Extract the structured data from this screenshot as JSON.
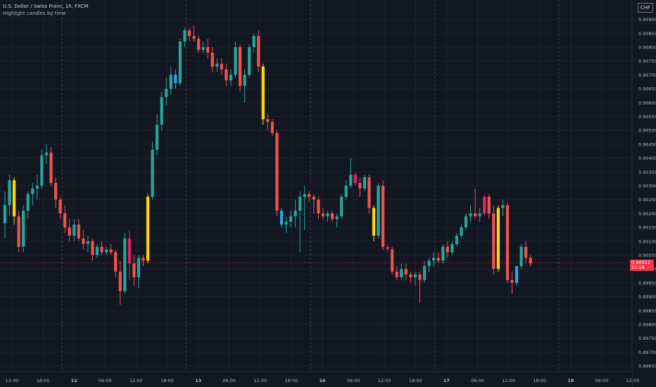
{
  "header": {
    "symbol_line": "U.S. Dollar / Swiss Franc, 1h, FXCM",
    "indicator": "Highlight candles by time"
  },
  "currency_button": "CHF",
  "last_price": {
    "price": "0.90022",
    "countdown": "51:16"
  },
  "colors": {
    "background": "#131722",
    "grid": "#1e222d",
    "up": "#26a69a",
    "down": "#ef5350",
    "yellow": "#ffd600",
    "blue": "#2fa4e7",
    "pink": "#e91e63",
    "text": "#b2b5be"
  },
  "chart_data": {
    "type": "candlestick",
    "y_axis": {
      "range": [
        0.8963,
        0.9097
      ],
      "ticks": [
        "0.90900",
        "0.90850",
        "0.90800",
        "0.90750",
        "0.90700",
        "0.90650",
        "0.90600",
        "0.90550",
        "0.90500",
        "0.90450",
        "0.90400",
        "0.90350",
        "0.90300",
        "0.90250",
        "0.90200",
        "0.90150",
        "0.90100",
        "0.90050",
        "0.90000",
        "0.89950",
        "0.89900",
        "0.89850",
        "0.89800",
        "0.89750",
        "0.89700",
        "0.89650"
      ]
    },
    "x_axis": {
      "ticks": [
        "12:00",
        "18:00",
        "12",
        "06:00",
        "12:00",
        "18:00",
        "13",
        "06:00",
        "12:00",
        "18:00",
        "16",
        "06:00",
        "12:00",
        "18:00",
        "17",
        "06:00",
        "12:00",
        "18:00",
        "18",
        "06:00",
        "12:00"
      ]
    },
    "last_price": 0.90022,
    "candles": [
      {
        "o": 0.90165,
        "h": 0.9028,
        "l": 0.9011,
        "c": 0.9023
      },
      {
        "o": 0.9023,
        "h": 0.9034,
        "l": 0.9019,
        "c": 0.9032
      },
      {
        "o": 0.9032,
        "h": 0.9033,
        "l": 0.9016,
        "c": 0.9019,
        "hl": "yellow"
      },
      {
        "o": 0.9019,
        "h": 0.9021,
        "l": 0.9006,
        "c": 0.9008
      },
      {
        "o": 0.9008,
        "h": 0.9023,
        "l": 0.9006,
        "c": 0.9021
      },
      {
        "o": 0.9021,
        "h": 0.9028,
        "l": 0.9018,
        "c": 0.9027
      },
      {
        "o": 0.9027,
        "h": 0.9031,
        "l": 0.9023,
        "c": 0.9029
      },
      {
        "o": 0.9029,
        "h": 0.9034,
        "l": 0.9025,
        "c": 0.903
      },
      {
        "o": 0.903,
        "h": 0.9043,
        "l": 0.9029,
        "c": 0.9041
      },
      {
        "o": 0.9041,
        "h": 0.9045,
        "l": 0.9038,
        "c": 0.9042
      },
      {
        "o": 0.9042,
        "h": 0.9044,
        "l": 0.903,
        "c": 0.9031
      },
      {
        "o": 0.9031,
        "h": 0.9033,
        "l": 0.9022,
        "c": 0.9025
      },
      {
        "o": 0.9025,
        "h": 0.9026,
        "l": 0.9018,
        "c": 0.902
      },
      {
        "o": 0.902,
        "h": 0.9023,
        "l": 0.9013,
        "c": 0.9015
      },
      {
        "o": 0.9015,
        "h": 0.9018,
        "l": 0.901,
        "c": 0.9012
      },
      {
        "o": 0.9012,
        "h": 0.9018,
        "l": 0.901,
        "c": 0.9016
      },
      {
        "o": 0.9016,
        "h": 0.9018,
        "l": 0.901,
        "c": 0.9011
      },
      {
        "o": 0.9011,
        "h": 0.9014,
        "l": 0.9007,
        "c": 0.9009
      },
      {
        "o": 0.9009,
        "h": 0.9012,
        "l": 0.9006,
        "c": 0.901
      },
      {
        "o": 0.901,
        "h": 0.9011,
        "l": 0.9003,
        "c": 0.9005
      },
      {
        "o": 0.9005,
        "h": 0.9009,
        "l": 0.9004,
        "c": 0.9008
      },
      {
        "o": 0.9008,
        "h": 0.901,
        "l": 0.9005,
        "c": 0.9006
      },
      {
        "o": 0.9006,
        "h": 0.9008,
        "l": 0.9005,
        "c": 0.9007
      },
      {
        "o": 0.9007,
        "h": 0.9009,
        "l": 0.9005,
        "c": 0.9006
      },
      {
        "o": 0.9006,
        "h": 0.9007,
        "l": 0.8997,
        "c": 0.8999
      },
      {
        "o": 0.8999,
        "h": 0.9003,
        "l": 0.8987,
        "c": 0.8992
      },
      {
        "o": 0.8992,
        "h": 0.9013,
        "l": 0.8991,
        "c": 0.9011
      },
      {
        "o": 0.9011,
        "h": 0.9014,
        "l": 0.8996,
        "c": 0.9002,
        "hl": "pink"
      },
      {
        "o": 0.9002,
        "h": 0.9005,
        "l": 0.8994,
        "c": 0.8997
      },
      {
        "o": 0.8997,
        "h": 0.9005,
        "l": 0.8993,
        "c": 0.9004
      },
      {
        "o": 0.9004,
        "h": 0.9005,
        "l": 0.9001,
        "c": 0.9003
      },
      {
        "o": 0.9003,
        "h": 0.9027,
        "l": 0.9002,
        "c": 0.9026,
        "hl": "yellow"
      },
      {
        "o": 0.9026,
        "h": 0.9046,
        "l": 0.9025,
        "c": 0.9043
      },
      {
        "o": 0.9043,
        "h": 0.9056,
        "l": 0.9041,
        "c": 0.9052
      },
      {
        "o": 0.9052,
        "h": 0.9064,
        "l": 0.905,
        "c": 0.9062
      },
      {
        "o": 0.9062,
        "h": 0.9069,
        "l": 0.9059,
        "c": 0.9065
      },
      {
        "o": 0.9065,
        "h": 0.9073,
        "l": 0.9063,
        "c": 0.907
      },
      {
        "o": 0.907,
        "h": 0.9072,
        "l": 0.9065,
        "c": 0.9067,
        "hl": "blue"
      },
      {
        "o": 0.9067,
        "h": 0.9083,
        "l": 0.9066,
        "c": 0.9082
      },
      {
        "o": 0.9082,
        "h": 0.9087,
        "l": 0.908,
        "c": 0.9086
      },
      {
        "o": 0.9086,
        "h": 0.9087,
        "l": 0.9082,
        "c": 0.9084
      },
      {
        "o": 0.9084,
        "h": 0.9088,
        "l": 0.9082,
        "c": 0.9083
      },
      {
        "o": 0.9083,
        "h": 0.9084,
        "l": 0.9078,
        "c": 0.9079
      },
      {
        "o": 0.9079,
        "h": 0.9082,
        "l": 0.9078,
        "c": 0.908
      },
      {
        "o": 0.908,
        "h": 0.9083,
        "l": 0.9076,
        "c": 0.9078
      },
      {
        "o": 0.9078,
        "h": 0.908,
        "l": 0.9071,
        "c": 0.9073
      },
      {
        "o": 0.9073,
        "h": 0.9076,
        "l": 0.9071,
        "c": 0.9074
      },
      {
        "o": 0.9074,
        "h": 0.9076,
        "l": 0.907,
        "c": 0.9072
      },
      {
        "o": 0.9072,
        "h": 0.9074,
        "l": 0.9066,
        "c": 0.9068
      },
      {
        "o": 0.9068,
        "h": 0.9072,
        "l": 0.9066,
        "c": 0.907
      },
      {
        "o": 0.907,
        "h": 0.9082,
        "l": 0.9069,
        "c": 0.908
      },
      {
        "o": 0.908,
        "h": 0.9081,
        "l": 0.9064,
        "c": 0.9066
      },
      {
        "o": 0.9066,
        "h": 0.9072,
        "l": 0.906,
        "c": 0.907
      },
      {
        "o": 0.907,
        "h": 0.9081,
        "l": 0.9069,
        "c": 0.908
      },
      {
        "o": 0.908,
        "h": 0.9085,
        "l": 0.9078,
        "c": 0.9084
      },
      {
        "o": 0.9084,
        "h": 0.9086,
        "l": 0.9071,
        "c": 0.9073
      },
      {
        "o": 0.9073,
        "h": 0.9074,
        "l": 0.9052,
        "c": 0.9054,
        "hl": "yellow"
      },
      {
        "o": 0.9054,
        "h": 0.9056,
        "l": 0.905,
        "c": 0.9053
      },
      {
        "o": 0.9053,
        "h": 0.9054,
        "l": 0.9048,
        "c": 0.9049
      },
      {
        "o": 0.9049,
        "h": 0.905,
        "l": 0.9019,
        "c": 0.9021
      },
      {
        "o": 0.9021,
        "h": 0.9022,
        "l": 0.9015,
        "c": 0.9016,
        "hl": "blue"
      },
      {
        "o": 0.9016,
        "h": 0.9019,
        "l": 0.9013,
        "c": 0.9017
      },
      {
        "o": 0.9017,
        "h": 0.9021,
        "l": 0.9015,
        "c": 0.9019
      },
      {
        "o": 0.9019,
        "h": 0.9025,
        "l": 0.9015,
        "c": 0.9021
      },
      {
        "o": 0.9021,
        "h": 0.9028,
        "l": 0.9006,
        "c": 0.9026
      },
      {
        "o": 0.9026,
        "h": 0.903,
        "l": 0.9014,
        "c": 0.9027
      },
      {
        "o": 0.9027,
        "h": 0.9028,
        "l": 0.9024,
        "c": 0.9026
      },
      {
        "o": 0.9026,
        "h": 0.9027,
        "l": 0.902,
        "c": 0.9025
      },
      {
        "o": 0.9025,
        "h": 0.9026,
        "l": 0.9018,
        "c": 0.902
      },
      {
        "o": 0.902,
        "h": 0.9022,
        "l": 0.9018,
        "c": 0.9019
      },
      {
        "o": 0.9019,
        "h": 0.9021,
        "l": 0.9017,
        "c": 0.902
      },
      {
        "o": 0.902,
        "h": 0.9021,
        "l": 0.9017,
        "c": 0.9018
      },
      {
        "o": 0.9018,
        "h": 0.902,
        "l": 0.9015,
        "c": 0.9019
      },
      {
        "o": 0.9019,
        "h": 0.9027,
        "l": 0.9018,
        "c": 0.9026
      },
      {
        "o": 0.9026,
        "h": 0.9032,
        "l": 0.9025,
        "c": 0.903
      },
      {
        "o": 0.903,
        "h": 0.904,
        "l": 0.9029,
        "c": 0.9034
      },
      {
        "o": 0.9034,
        "h": 0.9035,
        "l": 0.903,
        "c": 0.9031,
        "hl": "pink"
      },
      {
        "o": 0.9031,
        "h": 0.9033,
        "l": 0.9026,
        "c": 0.9029
      },
      {
        "o": 0.9029,
        "h": 0.9034,
        "l": 0.9028,
        "c": 0.9033
      },
      {
        "o": 0.9033,
        "h": 0.9034,
        "l": 0.902,
        "c": 0.9022
      },
      {
        "o": 0.9022,
        "h": 0.9023,
        "l": 0.901,
        "c": 0.9012,
        "hl": "yellow"
      },
      {
        "o": 0.9012,
        "h": 0.9031,
        "l": 0.9011,
        "c": 0.903
      },
      {
        "o": 0.903,
        "h": 0.9032,
        "l": 0.9007,
        "c": 0.9008
      },
      {
        "o": 0.9008,
        "h": 0.9009,
        "l": 0.9006,
        "c": 0.9007,
        "hl": "pink"
      },
      {
        "o": 0.9007,
        "h": 0.9008,
        "l": 0.8998,
        "c": 0.8999
      },
      {
        "o": 0.8999,
        "h": 0.9001,
        "l": 0.8996,
        "c": 0.8997
      },
      {
        "o": 0.8997,
        "h": 0.9002,
        "l": 0.8996,
        "c": 0.9
      },
      {
        "o": 0.9,
        "h": 0.9002,
        "l": 0.8996,
        "c": 0.8998
      },
      {
        "o": 0.8998,
        "h": 0.8999,
        "l": 0.8995,
        "c": 0.8997
      },
      {
        "o": 0.8997,
        "h": 0.8999,
        "l": 0.8994,
        "c": 0.8998
      },
      {
        "o": 0.8998,
        "h": 0.8999,
        "l": 0.8988,
        "c": 0.8996
      },
      {
        "o": 0.8996,
        "h": 0.9003,
        "l": 0.8995,
        "c": 0.9001
      },
      {
        "o": 0.9001,
        "h": 0.9004,
        "l": 0.8999,
        "c": 0.9003
      },
      {
        "o": 0.9003,
        "h": 0.9006,
        "l": 0.9001,
        "c": 0.9004
      },
      {
        "o": 0.9004,
        "h": 0.9006,
        "l": 0.9002,
        "c": 0.9003
      },
      {
        "o": 0.9003,
        "h": 0.9009,
        "l": 0.9002,
        "c": 0.9008
      },
      {
        "o": 0.9008,
        "h": 0.901,
        "l": 0.9004,
        "c": 0.9006
      },
      {
        "o": 0.9006,
        "h": 0.901,
        "l": 0.9005,
        "c": 0.9009
      },
      {
        "o": 0.9009,
        "h": 0.9013,
        "l": 0.9008,
        "c": 0.9012
      },
      {
        "o": 0.9012,
        "h": 0.9016,
        "l": 0.9011,
        "c": 0.9015
      },
      {
        "o": 0.9015,
        "h": 0.902,
        "l": 0.9014,
        "c": 0.9019
      },
      {
        "o": 0.9019,
        "h": 0.9023,
        "l": 0.9017,
        "c": 0.902
      },
      {
        "o": 0.902,
        "h": 0.9029,
        "l": 0.9018,
        "c": 0.9019
      },
      {
        "o": 0.9019,
        "h": 0.9022,
        "l": 0.9017,
        "c": 0.902
      },
      {
        "o": 0.902,
        "h": 0.9027,
        "l": 0.9019,
        "c": 0.9026,
        "hl": "pink"
      },
      {
        "o": 0.9026,
        "h": 0.9027,
        "l": 0.9018,
        "c": 0.902
      },
      {
        "o": 0.902,
        "h": 0.9023,
        "l": 0.8998,
        "c": 0.9
      },
      {
        "o": 0.9,
        "h": 0.9023,
        "l": 0.8999,
        "c": 0.9022,
        "hl": "yellow"
      },
      {
        "o": 0.9022,
        "h": 0.9025,
        "l": 0.9019,
        "c": 0.9023
      },
      {
        "o": 0.9023,
        "h": 0.9024,
        "l": 0.8995,
        "c": 0.8996
      },
      {
        "o": 0.8996,
        "h": 0.8999,
        "l": 0.8991,
        "c": 0.8995
      },
      {
        "o": 0.8995,
        "h": 0.9001,
        "l": 0.8994,
        "c": 0.9001,
        "hl": "blue"
      },
      {
        "o": 0.9001,
        "h": 0.9009,
        "l": 0.9,
        "c": 0.9008
      },
      {
        "o": 0.9008,
        "h": 0.901,
        "l": 0.9002,
        "c": 0.9004
      },
      {
        "o": 0.9004,
        "h": 0.9005,
        "l": 0.9001,
        "c": 0.9002
      }
    ]
  }
}
